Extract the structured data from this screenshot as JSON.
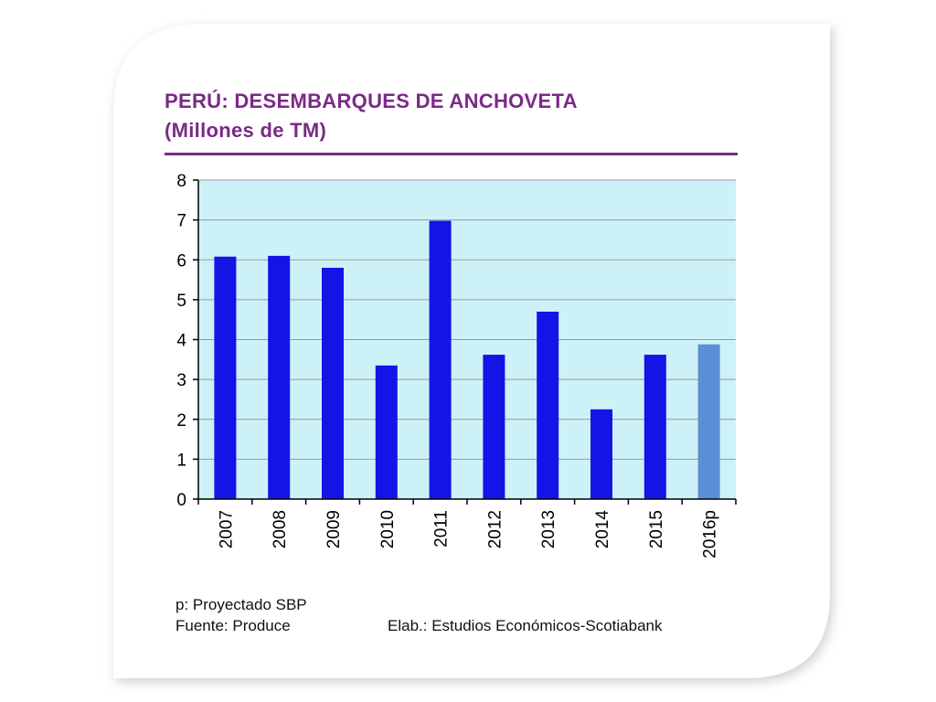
{
  "title_line1": "PERÚ: DESEMBARQUES DE ANCHOVETA",
  "title_line2": "(Millones de TM)",
  "notes": {
    "projection": "p: Proyectado SBP",
    "source": "Fuente: Produce",
    "elaboration": "Elab.: Estudios Económicos-Scotiabank"
  },
  "colors": {
    "title": "#7a2a86",
    "plot_background": "#ccf2f8",
    "bar": "#1414e6",
    "bar_projected": "#5b8fd6",
    "gridline": "#9a9a9a"
  },
  "chart_data": {
    "type": "bar",
    "title": "PERÚ: DESEMBARQUES DE ANCHOVETA (Millones de TM)",
    "xlabel": "",
    "ylabel": "",
    "ylim": [
      0,
      8
    ],
    "yticks": [
      "0",
      "1",
      "2",
      "3",
      "4",
      "5",
      "6",
      "7",
      "8"
    ],
    "grid": true,
    "categories": [
      "2007",
      "2008",
      "2009",
      "2010",
      "2011",
      "2012",
      "2013",
      "2014",
      "2015",
      "2016p"
    ],
    "values": [
      6.08,
      6.1,
      5.8,
      3.35,
      6.98,
      3.62,
      4.7,
      2.25,
      3.62,
      3.88
    ],
    "projected": [
      false,
      false,
      false,
      false,
      false,
      false,
      false,
      false,
      false,
      true
    ]
  }
}
